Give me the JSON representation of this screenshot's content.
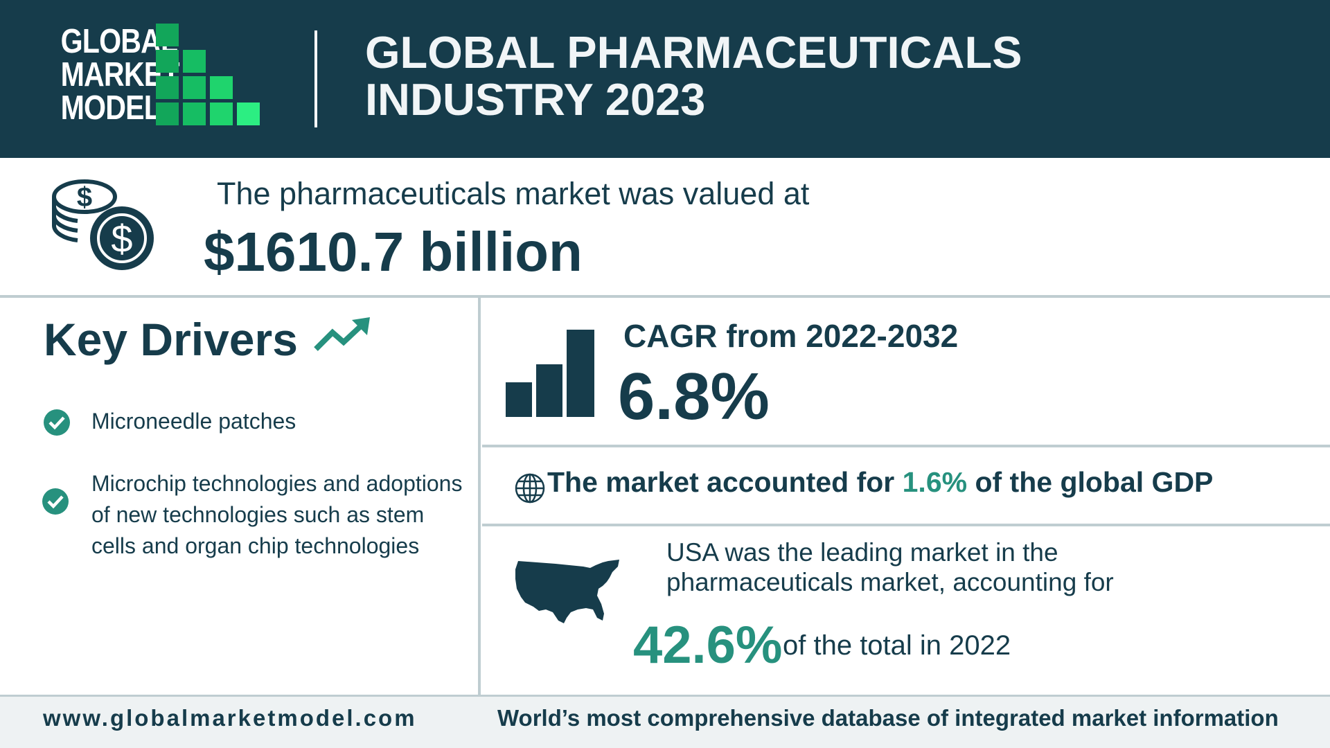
{
  "header": {
    "logo_lines": [
      "GLOBAL",
      "MARKET",
      "MODEL"
    ],
    "title_lines": [
      "GLOBAL PHARMACEUTICALS",
      "INDUSTRY 2023"
    ]
  },
  "market_value": {
    "intro": "The pharmaceuticals market was valued at",
    "amount": "$1610.7 billion",
    "icon": "coins-dollar-icon"
  },
  "key_drivers": {
    "title": "Key Drivers",
    "icon": "trend-up-icon",
    "items": [
      {
        "label": "Microneedle patches"
      },
      {
        "label": "Microchip technologies and adoptions of new technologies such as stem cells and organ chip technologies"
      }
    ]
  },
  "cagr": {
    "label": "CAGR from 2022-2032",
    "value": "6.8%",
    "icon": "bar-chart-icon"
  },
  "gdp": {
    "prefix": "The market accounted for ",
    "highlight": "1.6%",
    "suffix": " of the global GDP",
    "icon": "globe-icon"
  },
  "usa": {
    "lines": [
      "USA was the leading market in the",
      "pharmaceuticals market, accounting for"
    ],
    "percent": "42.6%",
    "suffix": "of the total in 2022",
    "icon": "usa-map-icon"
  },
  "footer": {
    "url": "www.globalmarketmodel.com",
    "tagline": "World’s most comprehensive database of integrated market information"
  },
  "colors": {
    "navy": "#163c4b",
    "accent_teal": "#27917e",
    "brand_green": "#1fd46d",
    "divider": "#bfcdd1"
  }
}
